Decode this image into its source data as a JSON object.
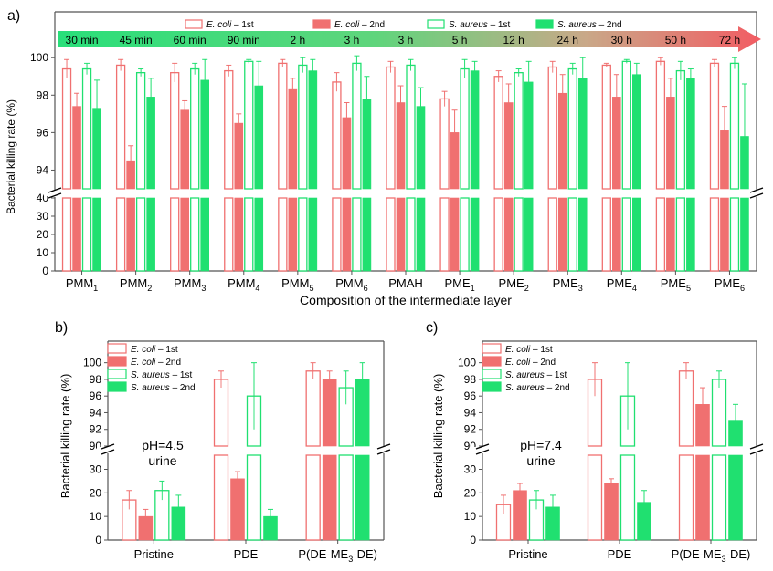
{
  "colors": {
    "ecoli": "#f07070",
    "saureus": "#20e070",
    "axis": "#666666",
    "arrow_start": "#29df7a",
    "arrow_end": "#f25c63"
  },
  "chart_data": [
    {
      "id": "a",
      "type": "bar",
      "panel_label": "a)",
      "xlabel": "Composition of the intermediate layer",
      "ylabel": "Bacterial killing rate (%)",
      "categories": [
        {
          "base": "PMM",
          "sub": "1"
        },
        {
          "base": "PMM",
          "sub": "2"
        },
        {
          "base": "PMM",
          "sub": "3"
        },
        {
          "base": "PMM",
          "sub": "4"
        },
        {
          "base": "PMM",
          "sub": "5"
        },
        {
          "base": "PMM",
          "sub": "6"
        },
        {
          "base": "PMAH",
          "sub": ""
        },
        {
          "base": "PME",
          "sub": "1"
        },
        {
          "base": "PME",
          "sub": "2"
        },
        {
          "base": "PME",
          "sub": "3"
        },
        {
          "base": "PME",
          "sub": "4"
        },
        {
          "base": "PME",
          "sub": "5"
        },
        {
          "base": "PME",
          "sub": "6"
        }
      ],
      "time_labels": [
        "30 min",
        "45 min",
        "60 min",
        "90 min",
        "2 h",
        "3 h",
        "3 h",
        "5 h",
        "12 h",
        "24 h",
        "30 h",
        "50 h",
        "72 h"
      ],
      "legend": [
        {
          "italic": "E. coli",
          "suffix": " – 1st",
          "style": "open",
          "color": "ecoli"
        },
        {
          "italic": "E. coli",
          "suffix": " – 2nd",
          "style": "filled",
          "color": "ecoli"
        },
        {
          "italic": "S. aureus",
          "suffix": " – 1st",
          "style": "open",
          "color": "saureus"
        },
        {
          "italic": "S. aureus",
          "suffix": " – 2nd",
          "style": "filled",
          "color": "saureus"
        }
      ],
      "series": [
        {
          "name": "E. coli – 1st",
          "values": [
            99.4,
            99.6,
            99.2,
            99.3,
            99.7,
            98.7,
            99.5,
            97.8,
            99.0,
            99.5,
            99.6,
            99.8,
            99.7
          ],
          "errors": [
            0.5,
            0.3,
            0.5,
            0.3,
            0.2,
            0.5,
            0.3,
            0.4,
            0.3,
            0.3,
            0.1,
            0.2,
            0.2
          ]
        },
        {
          "name": "E. coli – 2nd",
          "values": [
            97.4,
            94.5,
            97.2,
            96.5,
            98.3,
            96.8,
            97.6,
            96.0,
            97.6,
            98.1,
            97.9,
            97.9,
            96.1
          ],
          "errors": [
            0.7,
            0.8,
            0.5,
            0.5,
            0.6,
            0.8,
            0.9,
            1.2,
            1.0,
            1.0,
            1.2,
            1.0,
            1.3
          ]
        },
        {
          "name": "S. aureus – 1st",
          "values": [
            99.4,
            99.2,
            99.4,
            99.8,
            99.6,
            99.7,
            99.6,
            99.4,
            99.2,
            99.4,
            99.8,
            99.3,
            99.7
          ],
          "errors": [
            0.3,
            0.2,
            0.3,
            0.1,
            0.4,
            0.4,
            0.3,
            0.5,
            0.2,
            0.3,
            0.1,
            0.5,
            0.3
          ]
        },
        {
          "name": "S. aureus – 2nd",
          "values": [
            97.3,
            97.9,
            98.8,
            98.5,
            99.3,
            97.8,
            97.4,
            99.3,
            98.7,
            98.9,
            99.1,
            98.9,
            95.8
          ],
          "errors": [
            1.5,
            1.0,
            1.1,
            1.3,
            0.6,
            1.2,
            1.0,
            0.5,
            1.1,
            1.1,
            0.6,
            0.5,
            2.8
          ]
        }
      ],
      "y_upper_ticks": [
        "94",
        "96",
        "98",
        "100"
      ],
      "y_lower_ticks": [
        "0",
        "10",
        "20",
        "30",
        "40"
      ]
    },
    {
      "id": "b",
      "type": "bar",
      "panel_label": "b)",
      "annotation": [
        "pH=4.5",
        "urine"
      ],
      "xlabel": "",
      "ylabel": "Bacterial killing rate (%)",
      "categories": [
        {
          "base": "Pristine"
        },
        {
          "base": "PDE"
        },
        {
          "base": "P(DE-ME",
          "sub": "3",
          "tail": "-DE)"
        }
      ],
      "legend": [
        {
          "italic": "E. coli",
          "suffix": " – 1st",
          "style": "open",
          "color": "ecoli"
        },
        {
          "italic": "E. coli",
          "suffix": " – 2nd",
          "style": "filled",
          "color": "ecoli"
        },
        {
          "italic": "S. aureus",
          "suffix": " – 1st",
          "style": "open",
          "color": "saureus"
        },
        {
          "italic": "S. aureus",
          "suffix": " – 2nd",
          "style": "filled",
          "color": "saureus"
        }
      ],
      "series": [
        {
          "name": "E. coli – 1st",
          "values": [
            17,
            98,
            99
          ],
          "errors": [
            4,
            1,
            1
          ]
        },
        {
          "name": "E. coli – 2nd",
          "values": [
            10,
            26,
            98
          ],
          "errors": [
            3,
            3,
            1
          ]
        },
        {
          "name": "S. aureus – 1st",
          "values": [
            21,
            96,
            97
          ],
          "errors": [
            4,
            4,
            2
          ]
        },
        {
          "name": "S. aureus – 2nd",
          "values": [
            14,
            10,
            98
          ],
          "errors": [
            5,
            3,
            2
          ]
        }
      ],
      "y_upper_ticks": [
        "90",
        "92",
        "94",
        "96",
        "98",
        "100"
      ],
      "y_lower_ticks": [
        "0",
        "10",
        "20",
        "30"
      ]
    },
    {
      "id": "c",
      "type": "bar",
      "panel_label": "c)",
      "annotation": [
        "pH=7.4",
        "urine"
      ],
      "xlabel": "",
      "ylabel": "Bacterial killing rate (%)",
      "categories": [
        {
          "base": "Pristine"
        },
        {
          "base": "PDE"
        },
        {
          "base": "P(DE-ME",
          "sub": "3",
          "tail": "-DE)"
        }
      ],
      "legend": [
        {
          "italic": "E. coli",
          "suffix": " – 1st",
          "style": "open",
          "color": "ecoli"
        },
        {
          "italic": "E. coli",
          "suffix": " – 2nd",
          "style": "filled",
          "color": "ecoli"
        },
        {
          "italic": "S. aureus",
          "suffix": " – 1st",
          "style": "open",
          "color": "saureus"
        },
        {
          "italic": "S. aureus",
          "suffix": " – 2nd",
          "style": "filled",
          "color": "saureus"
        }
      ],
      "series": [
        {
          "name": "E. coli – 1st",
          "values": [
            15,
            98,
            99
          ],
          "errors": [
            4,
            2,
            1
          ]
        },
        {
          "name": "E. coli – 2nd",
          "values": [
            21,
            24,
            95
          ],
          "errors": [
            3,
            2,
            2
          ]
        },
        {
          "name": "S. aureus – 1st",
          "values": [
            17,
            96,
            98
          ],
          "errors": [
            4,
            4,
            1
          ]
        },
        {
          "name": "S. aureus – 2nd",
          "values": [
            14,
            16,
            93
          ],
          "errors": [
            5,
            5,
            2
          ]
        }
      ],
      "y_upper_ticks": [
        "90",
        "92",
        "94",
        "96",
        "98",
        "100"
      ],
      "y_lower_ticks": [
        "0",
        "10",
        "20",
        "30"
      ]
    }
  ]
}
